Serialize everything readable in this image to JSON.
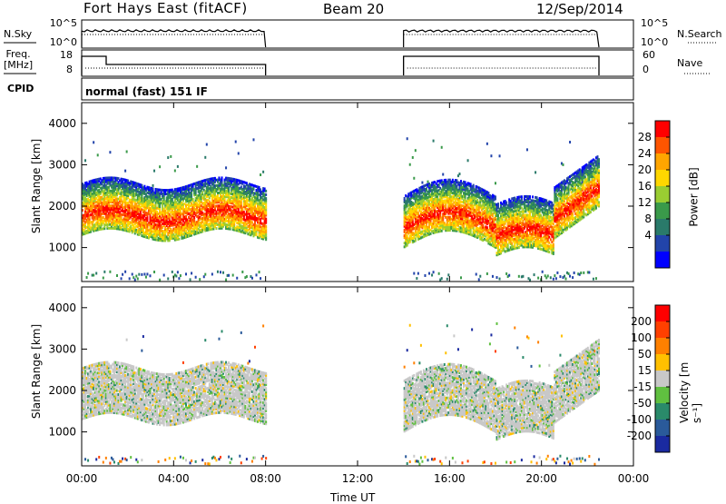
{
  "header": {
    "station": "Fort Hays East (fitACF)",
    "beam": "Beam 20",
    "date": "12/Sep/2014"
  },
  "top_panels": {
    "nsky_label": "N.Sky",
    "freq_label_line1": "Freq.",
    "freq_label_line2": "[MHz]",
    "cpid_label": "CPID",
    "nsearch_label": "N.Search",
    "nave_label": "Nave",
    "noise_left_ticks": [
      "10^5",
      "10^0"
    ],
    "noise_right_ticks": [
      "10^5",
      "10^0"
    ],
    "freq_left_ticks": [
      "18",
      "8"
    ],
    "freq_right_ticks": [
      "60",
      "0"
    ],
    "cpid_text": "normal (fast) 151 IF"
  },
  "chart_data": [
    {
      "type": "heatmap",
      "name": "power",
      "ylabel": "Slant Range [km]",
      "y_ticks": [
        "4000",
        "3000",
        "2000",
        "1000"
      ],
      "ylim": [
        180,
        4500
      ],
      "xlim": [
        "00:00",
        "24:00"
      ],
      "colorbar_label": "Power [dB]",
      "colorbar_ticks": [
        "28",
        "24",
        "20",
        "16",
        "12",
        "8",
        "4"
      ],
      "colorbar_colors": [
        "#0000ff",
        "#2244aa",
        "#2a7a6a",
        "#3a9a4a",
        "#9acd32",
        "#ffd700",
        "#ffa500",
        "#ff5500",
        "#ff0000"
      ],
      "data_windows": [
        [
          "00:00",
          "08:00"
        ],
        [
          "14:00",
          "22:30"
        ]
      ]
    },
    {
      "type": "heatmap",
      "name": "velocity",
      "ylabel": "Slant Range [km]",
      "y_ticks": [
        "4000",
        "3000",
        "2000",
        "1000"
      ],
      "ylim": [
        180,
        4500
      ],
      "xlim": [
        "00:00",
        "24:00"
      ],
      "colorbar_label": "Velocity [m s⁻¹]",
      "colorbar_ticks": [
        "200",
        "100",
        "50",
        "15",
        "-15",
        "-50",
        "-100",
        "-200"
      ],
      "colorbar_colors": [
        "#1a2aa0",
        "#2a5a9a",
        "#2a8a6a",
        "#60c040",
        "#c8c8c8",
        "#ffc000",
        "#ff8000",
        "#ff4000",
        "#ff0000"
      ],
      "data_windows": [
        [
          "00:00",
          "08:00"
        ],
        [
          "14:00",
          "22:30"
        ]
      ]
    }
  ],
  "x_axis": {
    "ticks": [
      "00:00",
      "04:00",
      "08:00",
      "12:00",
      "16:00",
      "20:00",
      "00:00"
    ],
    "label": "Time UT"
  }
}
